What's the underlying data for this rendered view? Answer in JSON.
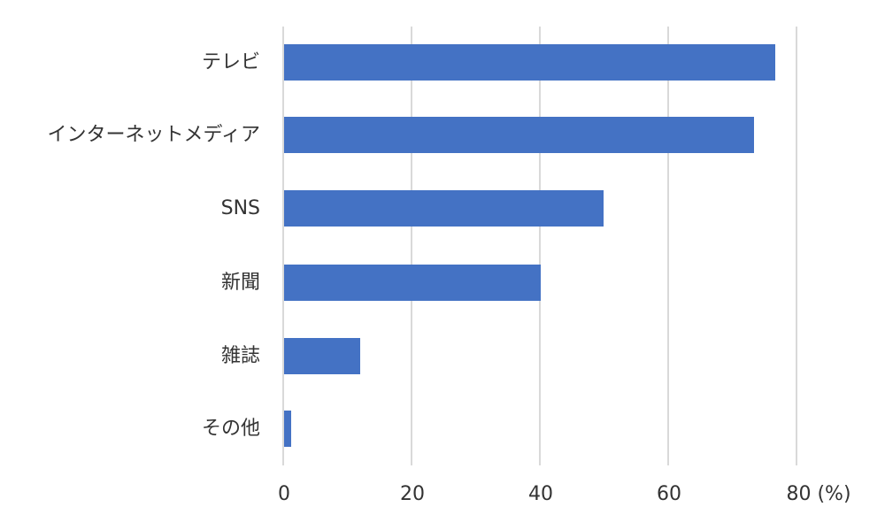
{
  "chart_data": {
    "type": "bar",
    "orientation": "horizontal",
    "title": "",
    "xlabel": "(%)",
    "ylabel": "",
    "categories": [
      "テレビ",
      "インターネットメディア",
      "SNS",
      "新聞",
      "雑誌",
      "その他"
    ],
    "values": [
      76.7,
      73.4,
      49.9,
      40.1,
      12.0,
      1.2
    ],
    "xlim": [
      0,
      80
    ],
    "xticks": [
      0,
      20,
      40,
      60,
      80
    ],
    "xtick_labels": [
      "0",
      "20",
      "40",
      "60",
      "80 (%)"
    ],
    "grid": "vertical",
    "legend": "none",
    "bar_color": "#4472c4"
  },
  "labels": {
    "cat0": "テレビ",
    "cat1": "インターネットメディア",
    "cat2": "SNS",
    "cat3": "新聞",
    "cat4": "雑誌",
    "cat5": "その他",
    "tick0": "0",
    "tick1": "20",
    "tick2": "40",
    "tick3": "60",
    "tick4": "80 (%)"
  }
}
